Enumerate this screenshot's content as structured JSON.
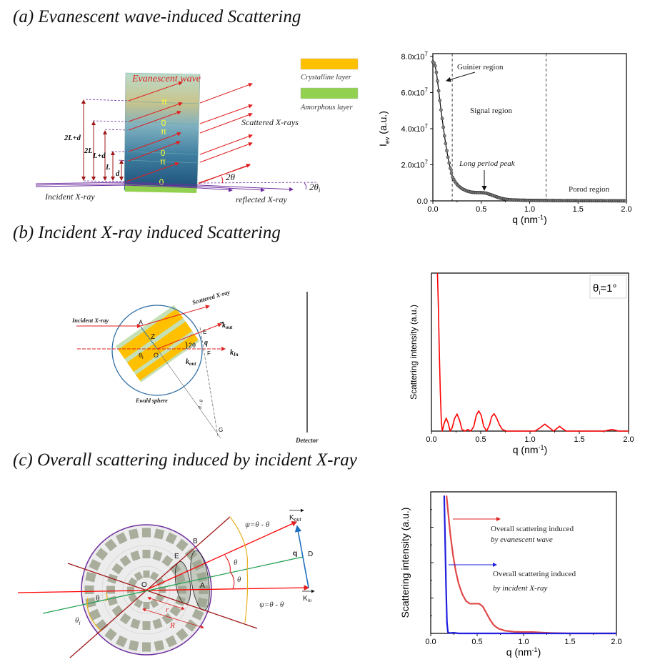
{
  "panels": {
    "a": {
      "title": "(a) Evanescent wave-induced Scattering",
      "evanescent_wave": "Evanescent wave",
      "legend_crystalline": "Crystalline layer",
      "legend_amorphous": "Amorphous layer",
      "scattered": "Scattered X-rays",
      "incident": "Incident X-ray",
      "reflected": "reflected X-ray",
      "two_theta": "2θ",
      "two_theta_i": "2θ",
      "two_theta_i_sub": "i",
      "dims": [
        "2L+d",
        "2L",
        "L+d",
        "L",
        "d"
      ],
      "phases": [
        "π",
        "0",
        "π",
        "0",
        "π",
        "0"
      ],
      "colors": {
        "crystalline": "#FFC000",
        "amorphous": "#92D050"
      }
    },
    "b": {
      "title": "(b) Incident X-ray induced Scattering",
      "incident": "Incident X-ray",
      "scattered": "Scattered X-ray",
      "ewald": "Ewald sphere",
      "detector": "Detector",
      "points": {
        "A": "A",
        "Z": "Z",
        "O": "O",
        "E": "E",
        "F": "F",
        "G": "G"
      },
      "k_out": "k",
      "k_out_sub": "out",
      "k_in": "k",
      "k_in_sub": "In",
      "q": "q",
      "two_theta": "2θ",
      "theta_i": "θ",
      "theta_i_sub": "i",
      "angle_G": "θ - θ",
      "angle_G_sub": "i"
    },
    "c": {
      "title": "(c) Overall scattering induced by incident X-ray",
      "points": {
        "O": "O",
        "B": "B",
        "E": "E",
        "A": "A",
        "D": "D"
      },
      "psi_top": "ψ=θ - θ",
      "psi_bottom": "ψ=θ - θ",
      "psi_sub": "i",
      "theta": "θ",
      "theta_i": "θ",
      "theta_i_sub": "i",
      "r": "r",
      "R": "R",
      "K_out": "K",
      "K_out_sub": "out",
      "K_in": "K",
      "K_in_sub": "in",
      "q": "q"
    }
  },
  "chart_data": [
    {
      "type": "scatter",
      "title": "",
      "xlabel": "q (nm",
      "xlabel_sup": "-1",
      "xlabel_end": ")",
      "ylabel": "I",
      "ylabel_sub": "ev",
      "ylabel_end": " (a.u.)",
      "xlim": [
        0,
        2.0
      ],
      "ylim": [
        0,
        80000000.0
      ],
      "xticks": [
        "0.0",
        "0.5",
        "1.0",
        "1.5",
        "2.0"
      ],
      "yticks": [
        "0.0",
        "2.0x10",
        "4.0x10",
        "6.0x10",
        "8.0x10"
      ],
      "ytick_exp": "7",
      "x": [
        0,
        0.02,
        0.04,
        0.06,
        0.08,
        0.1,
        0.12,
        0.14,
        0.16,
        0.18,
        0.2,
        0.23,
        0.26,
        0.3,
        0.35,
        0.4,
        0.45,
        0.5,
        0.55,
        0.6,
        0.65,
        0.7,
        0.75,
        0.8,
        0.9,
        1.0,
        1.2,
        1.5,
        1.8,
        2.0
      ],
      "y": [
        77000000.0,
        76000000.0,
        70000000.0,
        61000000.0,
        52000000.0,
        44000000.0,
        36000000.0,
        29000000.0,
        23000000.0,
        18000000.0,
        13500000.0,
        10500000.0,
        8500000.0,
        6800000.0,
        5500000.0,
        4800000.0,
        4600000.0,
        4600000.0,
        4300000.0,
        3400000.0,
        2400000.0,
        1500000.0,
        900000.0,
        600000.0,
        400000.0,
        300000.0,
        200000.0,
        100000.0,
        50000.0,
        0
      ],
      "vlines": [
        0.2,
        1.17
      ],
      "annotations": {
        "guinier": "Guinier region",
        "signal": "Signal region",
        "peak": "Long period peak",
        "porod": "Porod region"
      }
    },
    {
      "type": "line",
      "xlabel": "q (nm",
      "xlabel_sup": "-1",
      "xlabel_end": ")",
      "ylabel": "Scattering intensity (a.u.)",
      "xlim": [
        0,
        2.0
      ],
      "ylim": [
        0,
        1
      ],
      "xticks": [
        "0.0",
        "0.5",
        "1.0",
        "1.5",
        "2.0"
      ],
      "legend": "θ",
      "legend_sub": "i",
      "legend_end": "=1°",
      "color": "#ff0000",
      "x": [
        0.06,
        0.07,
        0.08,
        0.09,
        0.1,
        0.11,
        0.13,
        0.15,
        0.17,
        0.19,
        0.21,
        0.235,
        0.26,
        0.285,
        0.31,
        0.34,
        0.37,
        0.4,
        0.43,
        0.455,
        0.48,
        0.505,
        0.53,
        0.56,
        0.59,
        0.61,
        0.635,
        0.66,
        0.69,
        0.72,
        0.76,
        1.05,
        1.1,
        1.15,
        1.2,
        1.24,
        1.27,
        1.3,
        1.33,
        1.37,
        1.75,
        1.8,
        1.83,
        1.86,
        1.9,
        2.0
      ],
      "y": [
        1.02,
        0.8,
        0.5,
        0.25,
        0.07,
        0.0,
        0.05,
        0.082,
        0.05,
        0.0,
        0.02,
        0.08,
        0.108,
        0.07,
        0.01,
        0.0,
        0.01,
        0.0,
        0.03,
        0.1,
        0.128,
        0.1,
        0.03,
        0.0,
        0.04,
        0.09,
        0.11,
        0.085,
        0.04,
        0.01,
        0.0,
        0.0,
        0.02,
        0.044,
        0.02,
        0.0,
        0.015,
        0.03,
        0.015,
        0.0,
        0.0,
        0.006,
        0.01,
        0.006,
        0.0,
        0.0
      ]
    },
    {
      "type": "line",
      "xlabel": "q (nm",
      "xlabel_sup": "-1",
      "xlabel_end": ")",
      "ylabel": "Scattering intensity (a.u.)",
      "xlim": [
        0,
        2.0
      ],
      "ylim": [
        0,
        1
      ],
      "xticks": [
        "0.0",
        "0.5",
        "1.0",
        "1.5",
        "2.0"
      ],
      "series": [
        {
          "name": "Overall scattering induced by evanescent wave",
          "label_line1": "Overall scattering induced",
          "label_line2": "by evanescent wave",
          "color": "#e04848",
          "x": [
            0.17,
            0.19,
            0.21,
            0.24,
            0.27,
            0.3,
            0.34,
            0.38,
            0.42,
            0.47,
            0.52,
            0.56,
            0.6,
            0.64,
            0.68,
            0.73,
            0.8,
            0.9,
            1.0,
            1.1,
            1.2,
            1.3,
            1.5,
            2.0
          ],
          "y": [
            1.02,
            0.88,
            0.74,
            0.58,
            0.46,
            0.37,
            0.29,
            0.24,
            0.22,
            0.22,
            0.22,
            0.2,
            0.15,
            0.1,
            0.06,
            0.035,
            0.02,
            0.012,
            0.01,
            0.01,
            0.006,
            0.003,
            0.0,
            0.0
          ]
        },
        {
          "name": "Overall scattering induced by incident X-ray",
          "label_line1": "Overall scattering induced",
          "label_line2": "by incident X-ray",
          "color": "#1f1fe0",
          "x": [
            0.145,
            0.155,
            0.165,
            0.175,
            0.185,
            0.2,
            0.25,
            0.3,
            2.0
          ],
          "y": [
            1.02,
            0.7,
            0.35,
            0.08,
            0.01,
            0.003,
            0.005,
            0.0,
            0.0
          ]
        }
      ]
    }
  ]
}
